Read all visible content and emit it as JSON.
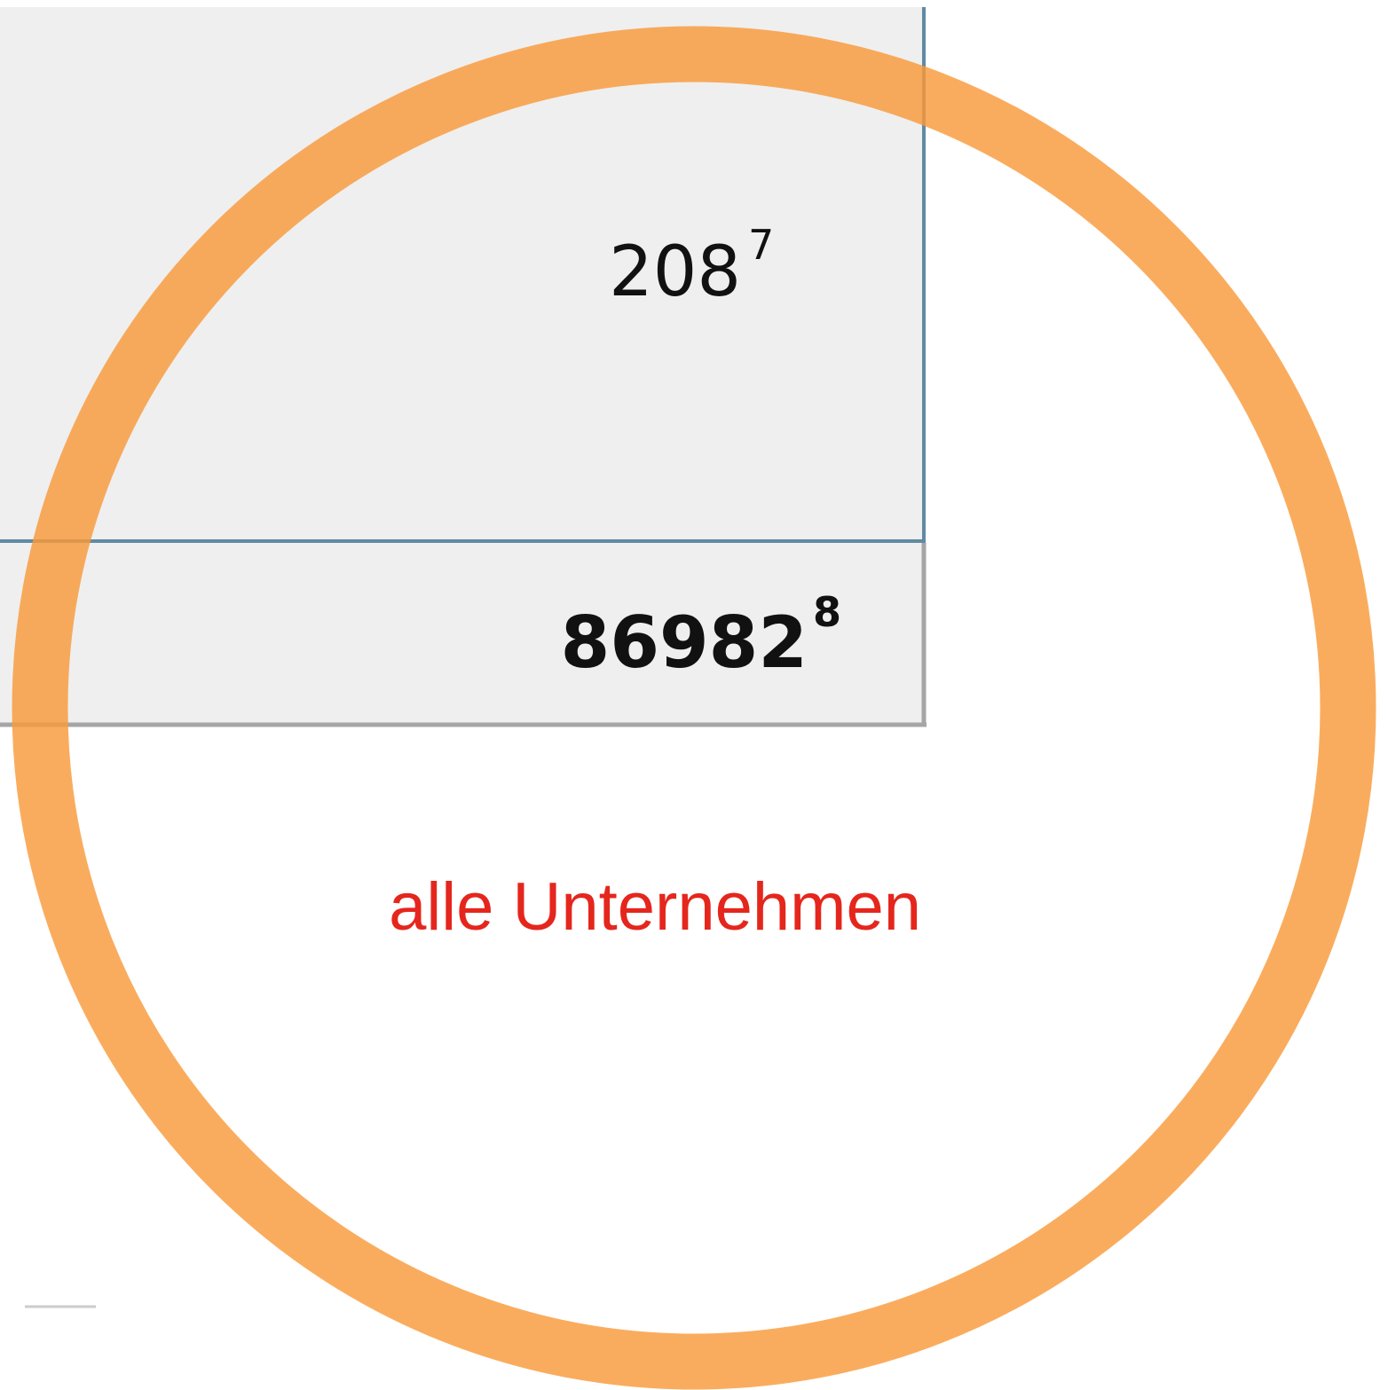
{
  "table": {
    "rows": [
      {
        "value": "208",
        "footnote": "7"
      },
      {
        "value": "86982",
        "footnote": "8"
      }
    ]
  },
  "highlight": {
    "label": "alle Unternehmen"
  }
}
